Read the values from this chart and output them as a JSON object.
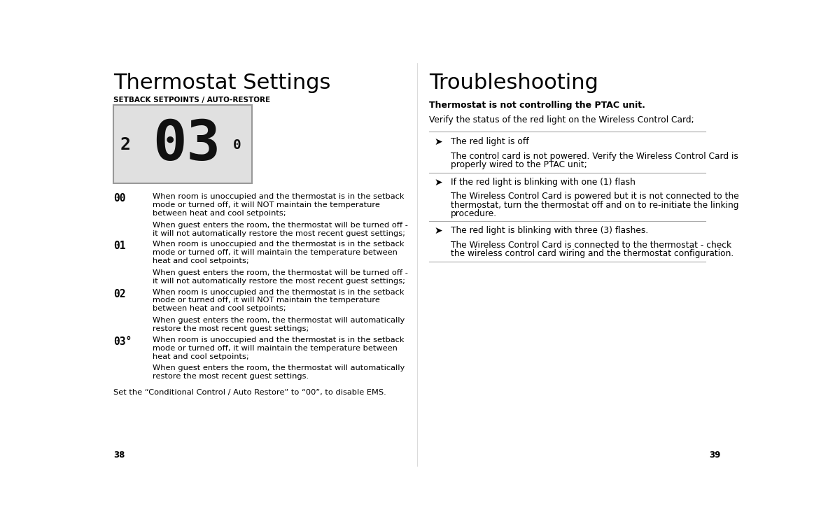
{
  "bg_color": "#ffffff",
  "page_width": 11.63,
  "page_height": 7.49,
  "left_title": "Thermostat Settings",
  "left_subtitle": "SETBACK SETPOINTS / AUTO-RESTORE",
  "display_bg": "#e0e0e0",
  "display_text_large": "03",
  "display_text_small_left": "2",
  "display_text_small_right": "0",
  "entries": [
    {
      "code": "00",
      "lines1": [
        "When room is unoccupied and the thermostat is in the setback",
        "mode or turned off, it will NOT maintain the temperature",
        "between heat and cool setpoints;"
      ],
      "lines2": [
        "When guest enters the room, the thermostat will be turned off -",
        "it will not automatically restore the most recent guest settings;"
      ]
    },
    {
      "code": "01",
      "lines1": [
        "When room is unoccupied and the thermostat is in the setback",
        "mode or turned off, it will maintain the temperature between",
        "heat and cool setpoints;"
      ],
      "lines2": [
        "When guest enters the room, the thermostat will be turned off -",
        "it will not automatically restore the most recent guest settings;"
      ]
    },
    {
      "code": "02",
      "lines1": [
        "When room is unoccupied and the thermostat is in the setback",
        "mode or turned off, it will NOT maintain the temperature",
        "between heat and cool setpoints;"
      ],
      "lines2": [
        "When guest enters the room, the thermostat will automatically",
        "restore the most recent guest settings;"
      ]
    },
    {
      "code": "03°",
      "lines1": [
        "When room is unoccupied and the thermostat is in the setback",
        "mode or turned off, it will maintain the temperature between",
        "heat and cool setpoints;"
      ],
      "lines2": [
        "When guest enters the room, the thermostat will automatically",
        "restore the most recent guest settings."
      ]
    }
  ],
  "footer_left": "Set the “Conditional Control / Auto Restore” to “00”, to disable EMS.",
  "page_num_left": "38",
  "right_title": "Troubleshooting",
  "right_subtitle": "Thermostat is not controlling the PTAC unit.",
  "right_intro": "Verify the status of the red light on the Wireless Control Card;",
  "right_items": [
    {
      "header": "The red light is off",
      "body": [
        "The control card is not powered. Verify the Wireless Control Card is",
        "properly wired to the PTAC unit;"
      ]
    },
    {
      "header": "If the red light is blinking with one (1) flash",
      "body": [
        "The Wireless Control Card is powered but it is not connected to the",
        "thermostat, turn the thermostat off and on to re-initiate the linking",
        "procedure."
      ]
    },
    {
      "header": "The red light is blinking with three (3) flashes.",
      "body": [
        "The Wireless Control Card is connected to the thermostat - check",
        "the wireless control card wiring and the thermostat configuration."
      ]
    }
  ],
  "page_num_right": "39"
}
